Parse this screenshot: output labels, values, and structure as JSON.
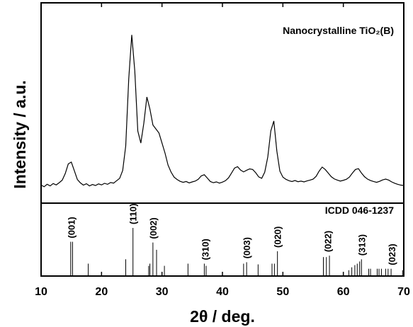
{
  "chart_data": [
    {
      "type": "line",
      "title": "Nanocrystalline TiO₂(B)",
      "ylabel": "Intensity / a.u.",
      "xlim": [
        10,
        70
      ],
      "ylim": [
        0,
        100
      ],
      "color": "#000000",
      "x": [
        10,
        10.5,
        11,
        11.5,
        12,
        12.5,
        13,
        13.5,
        14,
        14.5,
        15,
        15.5,
        16,
        16.5,
        17,
        17.5,
        18,
        18.5,
        19,
        19.5,
        20,
        20.5,
        21,
        21.5,
        22,
        22.5,
        23,
        23.5,
        24,
        24.5,
        25,
        25.5,
        26,
        26.5,
        27,
        27.5,
        28,
        28.5,
        29,
        29.5,
        30,
        30.5,
        31,
        31.5,
        32,
        32.5,
        33,
        33.5,
        34,
        34.5,
        35,
        35.5,
        36,
        36.5,
        37,
        37.5,
        38,
        38.5,
        39,
        39.5,
        40,
        40.5,
        41,
        41.5,
        42,
        42.5,
        43,
        43.5,
        44,
        44.5,
        45,
        45.5,
        46,
        46.5,
        47,
        47.5,
        48,
        48.5,
        49,
        49.5,
        50,
        50.5,
        51,
        51.5,
        52,
        52.5,
        53,
        53.5,
        54,
        54.5,
        55,
        55.5,
        56,
        56.5,
        57,
        57.5,
        58,
        58.5,
        59,
        59.5,
        60,
        60.5,
        61,
        61.5,
        62,
        62.5,
        63,
        63.5,
        64,
        64.5,
        65,
        65.5,
        66,
        66.5,
        67,
        67.5,
        68,
        68.5,
        69,
        69.5,
        70
      ],
      "values": [
        9.0,
        8.2,
        9.4,
        8.6,
        9.8,
        9.1,
        10.2,
        11.5,
        14.8,
        19.6,
        20.5,
        16.2,
        11.8,
        10.1,
        9.0,
        9.7,
        8.6,
        9.3,
        8.8,
        9.6,
        9.1,
        9.9,
        9.4,
        10.3,
        10.0,
        11.2,
        12.4,
        16.3,
        28.5,
        62.0,
        84.0,
        66.0,
        36.0,
        30.0,
        40.0,
        53.0,
        47.0,
        39.0,
        37.0,
        35.0,
        30.0,
        25.0,
        19.0,
        15.5,
        13.0,
        11.8,
        10.9,
        10.4,
        10.8,
        10.1,
        10.6,
        11.0,
        11.9,
        13.6,
        14.2,
        12.5,
        10.8,
        10.2,
        10.6,
        10.0,
        10.5,
        11.2,
        12.6,
        15.0,
        17.5,
        18.2,
        16.5,
        15.6,
        16.4,
        17.1,
        16.8,
        15.2,
        13.1,
        12.4,
        15.5,
        23.0,
        36.0,
        41.0,
        26.0,
        16.0,
        13.0,
        11.9,
        11.2,
        10.8,
        11.3,
        10.7,
        11.0,
        10.6,
        11.1,
        11.5,
        12.0,
        13.4,
        16.0,
        18.0,
        16.8,
        15.0,
        13.2,
        12.1,
        11.5,
        11.0,
        11.4,
        11.9,
        13.0,
        15.0,
        16.8,
        17.2,
        15.0,
        13.2,
        12.0,
        11.3,
        10.8,
        10.4,
        10.9,
        11.6,
        12.0,
        11.5,
        10.6,
        9.9,
        9.4,
        9.0,
        8.8
      ]
    },
    {
      "type": "stick",
      "title": "ICDD 046-1237",
      "xlabel": "2θ / deg.",
      "xlim": [
        10,
        70
      ],
      "ylim": [
        0,
        100
      ],
      "xticks": [
        10,
        20,
        30,
        40,
        50,
        60,
        70
      ],
      "color": "#000000",
      "x": [
        14.9,
        15.2,
        17.8,
        24.0,
        25.2,
        27.8,
        28.0,
        28.5,
        29.1,
        30.4,
        34.3,
        37.0,
        37.3,
        43.5,
        44.0,
        45.9,
        48.2,
        48.6,
        49.1,
        56.7,
        57.2,
        57.7,
        60.9,
        61.4,
        61.9,
        62.3,
        62.7,
        63.0,
        64.2,
        64.5,
        65.6,
        65.9,
        66.3,
        67.0,
        67.4,
        67.9,
        69.8
      ],
      "values": [
        47,
        47,
        17,
        23,
        66,
        14,
        17,
        46,
        36,
        14,
        17,
        17,
        14,
        17,
        19,
        16,
        17,
        17,
        34,
        26,
        26,
        28,
        8,
        12,
        15,
        17,
        20,
        23,
        10,
        10,
        10,
        10,
        10,
        10,
        10,
        10,
        8
      ],
      "peak_labels": [
        {
          "text": "(001)",
          "x": 15.0
        },
        {
          "text": "(110)",
          "x": 25.2
        },
        {
          "text": "(002)",
          "x": 28.5
        },
        {
          "text": "(310)",
          "x": 37.1
        },
        {
          "text": "(003)",
          "x": 44.0
        },
        {
          "text": "(020)",
          "x": 49.1
        },
        {
          "text": "(022)",
          "x": 57.4
        },
        {
          "text": "(313)",
          "x": 63.0
        },
        {
          "text": "(023)",
          "x": 68.0
        }
      ]
    }
  ]
}
